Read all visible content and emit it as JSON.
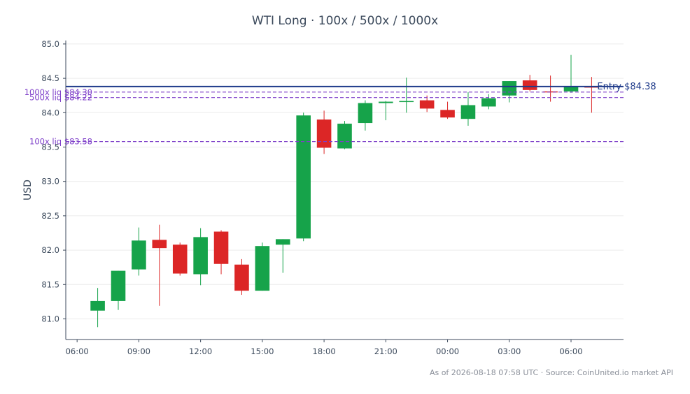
{
  "title": "WTI Long · 100x / 500x / 1000x",
  "footnote": "As of 2026-08-18 07:58 UTC · Source: CoinUnited.io market API",
  "chart_data": {
    "type": "candlestick",
    "title": "WTI Long · 100x / 500x / 1000x",
    "xlabel": "",
    "ylabel": "USD",
    "ylim": [
      80.7,
      85.05
    ],
    "y_ticks": [
      "81.0",
      "81.5",
      "82.0",
      "82.5",
      "83.0",
      "83.5",
      "84.0",
      "84.5",
      "85.0"
    ],
    "x_ticks": [
      {
        "label": "06:00",
        "t": 0
      },
      {
        "label": "09:00",
        "t": 3
      },
      {
        "label": "12:00",
        "t": 6
      },
      {
        "label": "15:00",
        "t": 9
      },
      {
        "label": "18:00",
        "t": 12
      },
      {
        "label": "21:00",
        "t": 15
      },
      {
        "label": "00:00",
        "t": 18
      },
      {
        "label": "03:00",
        "t": 21
      },
      {
        "label": "06:00",
        "t": 24
      }
    ],
    "x_range": [
      -0.55,
      26.55
    ],
    "grid": true,
    "colors": {
      "up": "#16a34a",
      "down": "#dc2626",
      "entry": "#1e3a8a",
      "liq": "#7e3fc9"
    },
    "candles": [
      {
        "t": 1,
        "open": 81.12,
        "high": 81.45,
        "low": 80.88,
        "close": 81.26
      },
      {
        "t": 2,
        "open": 81.26,
        "high": 81.7,
        "low": 81.13,
        "close": 81.7
      },
      {
        "t": 3,
        "open": 81.72,
        "high": 82.33,
        "low": 81.63,
        "close": 82.14
      },
      {
        "t": 4,
        "open": 82.15,
        "high": 82.37,
        "low": 81.19,
        "close": 82.03
      },
      {
        "t": 5,
        "open": 82.08,
        "high": 82.11,
        "low": 81.63,
        "close": 81.66
      },
      {
        "t": 6,
        "open": 81.65,
        "high": 82.32,
        "low": 81.49,
        "close": 82.19
      },
      {
        "t": 7,
        "open": 82.27,
        "high": 82.29,
        "low": 81.65,
        "close": 81.8
      },
      {
        "t": 8,
        "open": 81.79,
        "high": 81.87,
        "low": 81.35,
        "close": 81.41
      },
      {
        "t": 9,
        "open": 81.41,
        "high": 82.11,
        "low": 81.41,
        "close": 82.06
      },
      {
        "t": 10,
        "open": 82.08,
        "high": 82.16,
        "low": 81.67,
        "close": 82.16
      },
      {
        "t": 11,
        "open": 82.17,
        "high": 84.0,
        "low": 82.13,
        "close": 83.96
      },
      {
        "t": 12,
        "open": 83.9,
        "high": 84.03,
        "low": 83.4,
        "close": 83.49
      },
      {
        "t": 13,
        "open": 83.48,
        "high": 83.88,
        "low": 83.47,
        "close": 83.84
      },
      {
        "t": 14,
        "open": 83.85,
        "high": 84.18,
        "low": 83.74,
        "close": 84.14
      },
      {
        "t": 15,
        "open": 84.14,
        "high": 84.17,
        "low": 83.89,
        "close": 84.16
      },
      {
        "t": 16,
        "open": 84.16,
        "high": 84.51,
        "low": 84.0,
        "close": 84.17
      },
      {
        "t": 17,
        "open": 84.18,
        "high": 84.25,
        "low": 84.01,
        "close": 84.06
      },
      {
        "t": 18,
        "open": 84.04,
        "high": 84.16,
        "low": 83.91,
        "close": 83.93
      },
      {
        "t": 19,
        "open": 83.91,
        "high": 84.3,
        "low": 83.81,
        "close": 84.11
      },
      {
        "t": 20,
        "open": 84.09,
        "high": 84.27,
        "low": 84.05,
        "close": 84.21
      },
      {
        "t": 21,
        "open": 84.25,
        "high": 84.46,
        "low": 84.15,
        "close": 84.46
      },
      {
        "t": 22,
        "open": 84.47,
        "high": 84.55,
        "low": 84.31,
        "close": 84.33
      },
      {
        "t": 23,
        "open": 84.31,
        "high": 84.54,
        "low": 84.16,
        "close": 84.3
      },
      {
        "t": 24,
        "open": 84.31,
        "high": 84.84,
        "low": 84.29,
        "close": 84.38
      },
      {
        "t": 25,
        "open": 84.38,
        "high": 84.52,
        "low": 84.0,
        "close": 84.37
      }
    ],
    "reference_lines": [
      {
        "name": "entry",
        "label": "Entry $84.38",
        "value": 84.38,
        "style": "solid",
        "label_side": "right"
      },
      {
        "name": "liq-1000x",
        "label": "1000x liq $84.30",
        "value": 84.3,
        "style": "dashed",
        "label_side": "left"
      },
      {
        "name": "liq-500x",
        "label": "500x liq $84.22",
        "value": 84.22,
        "style": "dashed",
        "label_side": "left"
      },
      {
        "name": "liq-100x",
        "label": "100x liq $83.58",
        "value": 83.58,
        "style": "dashed",
        "label_side": "left"
      }
    ]
  }
}
